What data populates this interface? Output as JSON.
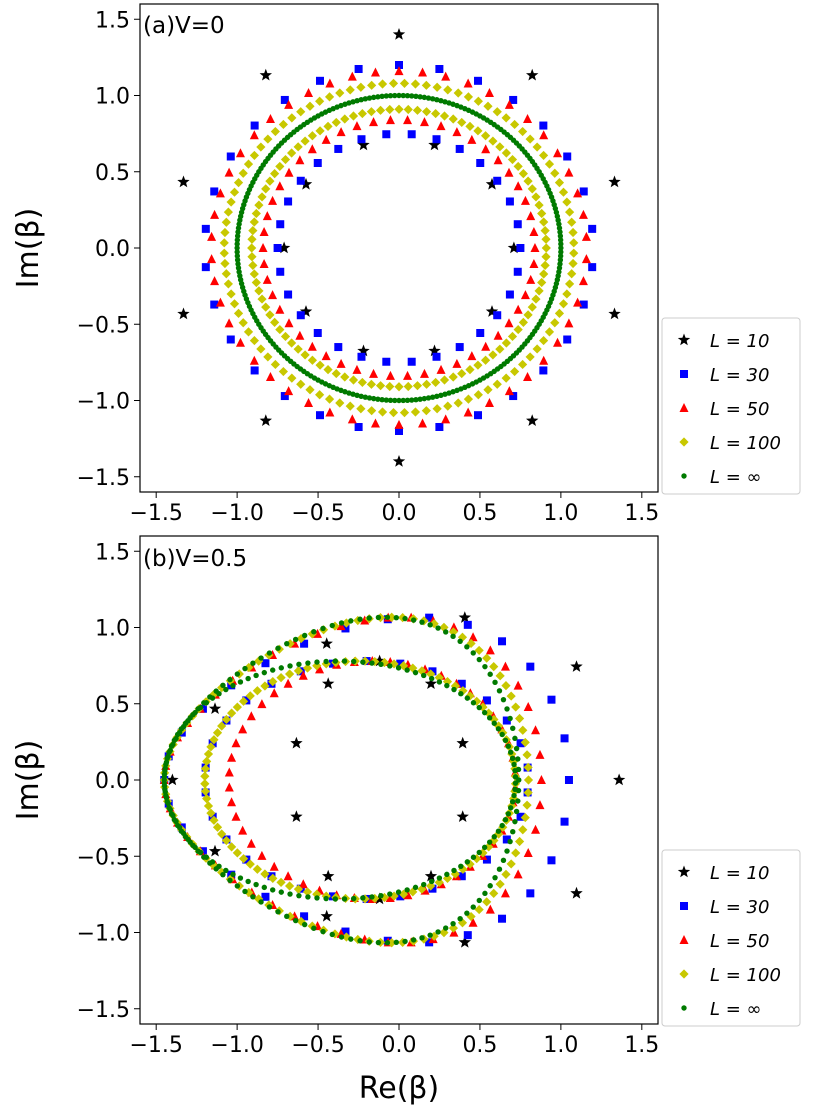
{
  "figure": {
    "xlabel": "Re(β)",
    "ylabel": "Im(β)"
  },
  "chart_data": [
    {
      "type": "scatter",
      "panel_label": "(a)V=0",
      "xlim": [
        -1.6,
        1.6
      ],
      "ylim": [
        -1.6,
        1.6
      ],
      "xticks": [
        "−1.5",
        "−1.0",
        "−0.5",
        "0.0",
        "0.5",
        "1.0",
        "1.5"
      ],
      "xtick_values": [
        -1.5,
        -1.0,
        -0.5,
        0.0,
        0.5,
        1.0,
        1.5
      ],
      "yticks": [
        "1.5",
        "1.0",
        "0.5",
        "0.0",
        "−0.5",
        "−1.0",
        "−1.5"
      ],
      "ytick_values": [
        1.5,
        1.0,
        0.5,
        0.0,
        -0.5,
        -1.0,
        -1.5
      ],
      "ylabel": "Im(β)",
      "grid": false,
      "legend": {
        "placement": "right"
      },
      "series": [
        {
          "name": "L = 10",
          "marker": "star",
          "color": "#000000",
          "shape": {
            "kind": "ring_pair",
            "radii": [
              1.4,
              0.71
            ],
            "count": 20
          }
        },
        {
          "name": "L = 30",
          "marker": "square",
          "color": "#0000ff",
          "shape": {
            "kind": "ring_pair",
            "radii": [
              1.2,
              0.75
            ],
            "count": 60
          }
        },
        {
          "name": "L = 50",
          "marker": "triangle",
          "color": "#ff0000",
          "shape": {
            "kind": "ring_pair",
            "radii": [
              1.16,
              0.84
            ],
            "count": 100
          }
        },
        {
          "name": "L = 100",
          "marker": "diamond",
          "color": "#c8c800",
          "shape": {
            "kind": "ring_pair",
            "radii": [
              1.08,
              0.91
            ],
            "count": 200
          }
        },
        {
          "name": "L = ∞",
          "marker": "dot",
          "color": "#007a00",
          "shape": {
            "kind": "ring_pair",
            "radii": [
              1.0,
              1.0
            ],
            "count": 240
          }
        }
      ]
    },
    {
      "type": "scatter",
      "panel_label": "(b)V=0.5",
      "xlim": [
        -1.6,
        1.6
      ],
      "ylim": [
        -1.6,
        1.6
      ],
      "xticks": [
        "−1.5",
        "−1.0",
        "−0.5",
        "0.0",
        "0.5",
        "1.0",
        "1.5"
      ],
      "xtick_values": [
        -1.5,
        -1.0,
        -0.5,
        0.0,
        0.5,
        1.0,
        1.5
      ],
      "yticks": [
        "1.5",
        "1.0",
        "0.5",
        "0.0",
        "−0.5",
        "−1.0",
        "−1.5"
      ],
      "ytick_values": [
        1.5,
        1.0,
        0.5,
        0.0,
        -0.5,
        -1.0,
        -1.5
      ],
      "xlabel": "Re(β)",
      "ylabel": "Im(β)",
      "grid": false,
      "legend": {
        "placement": "right"
      },
      "series": [
        {
          "name": "L = 10",
          "marker": "star",
          "color": "#000000",
          "shape": {
            "kind": "lemon",
            "outer_right": 1.36,
            "outer_left": -1.4,
            "inner_right": 0.42,
            "inner_left": -0.66,
            "count": 20
          }
        },
        {
          "name": "L = 30",
          "marker": "square",
          "color": "#0000ff",
          "shape": {
            "kind": "lemon",
            "outer_right": 1.05,
            "outer_left": -1.45,
            "inner_right": 0.8,
            "inner_left": -1.2,
            "count": 60
          }
        },
        {
          "name": "L = 50",
          "marker": "triangle",
          "color": "#ff0000",
          "shape": {
            "kind": "lemon",
            "outer_right": 0.88,
            "outer_left": -1.45,
            "inner_right": 0.72,
            "inner_left": -1.05,
            "count": 100
          }
        },
        {
          "name": "L = 100",
          "marker": "diamond",
          "color": "#c8c800",
          "shape": {
            "kind": "lemon",
            "outer_right": 0.8,
            "outer_left": -1.45,
            "inner_right": 0.72,
            "inner_left": -1.2,
            "count": 200
          }
        },
        {
          "name": "L = ∞",
          "marker": "dot",
          "color": "#007a00",
          "shape": {
            "kind": "lemon",
            "outer_right": 0.74,
            "outer_left": -1.45,
            "inner_right": 0.72,
            "inner_left": -1.45,
            "count": 240
          }
        }
      ]
    }
  ]
}
